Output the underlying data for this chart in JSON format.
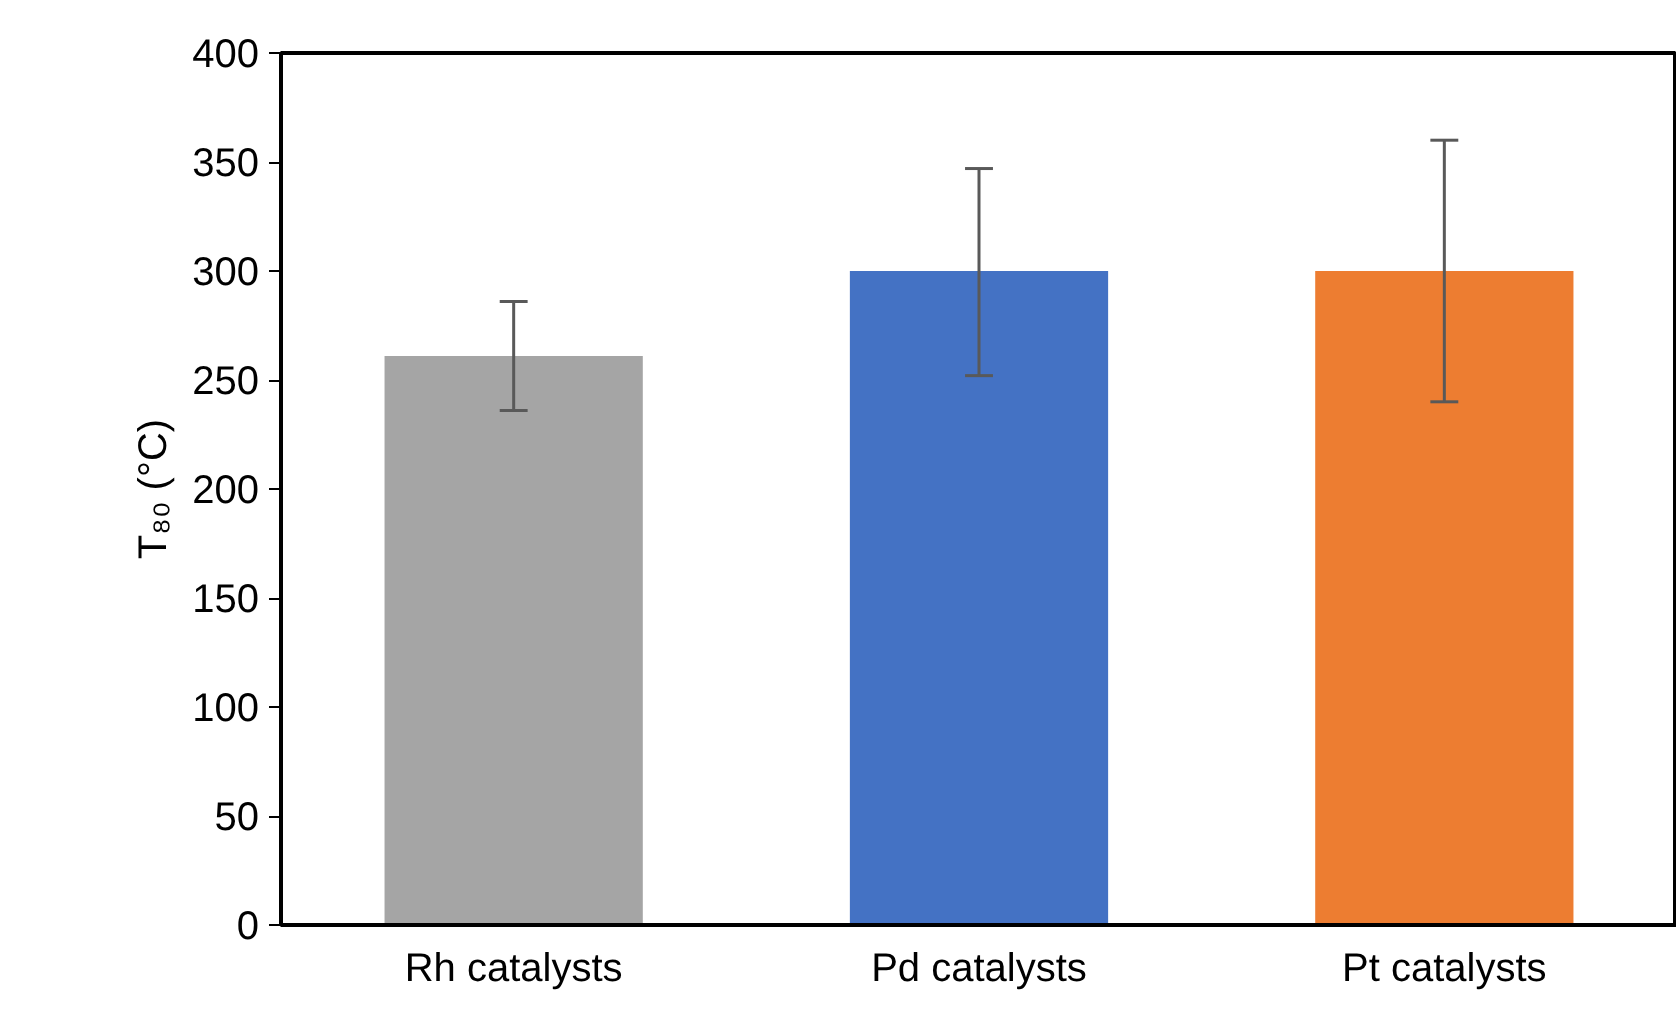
{
  "chart_data": {
    "type": "bar",
    "ylabel": "T₈₀ (°C)",
    "categories": [
      "Rh catalysts",
      "Pd catalysts",
      "Pt catalysts"
    ],
    "values": [
      261,
      300,
      300
    ],
    "colors": [
      "#a5a5a5",
      "#4472c4",
      "#ed7d31"
    ],
    "errors": [
      [
        236,
        286
      ],
      [
        252,
        347
      ],
      [
        240,
        360
      ]
    ],
    "ylim": [
      0,
      400
    ],
    "yticks": [
      0,
      50,
      100,
      150,
      200,
      250,
      300,
      350,
      400
    ],
    "grid": false
  }
}
